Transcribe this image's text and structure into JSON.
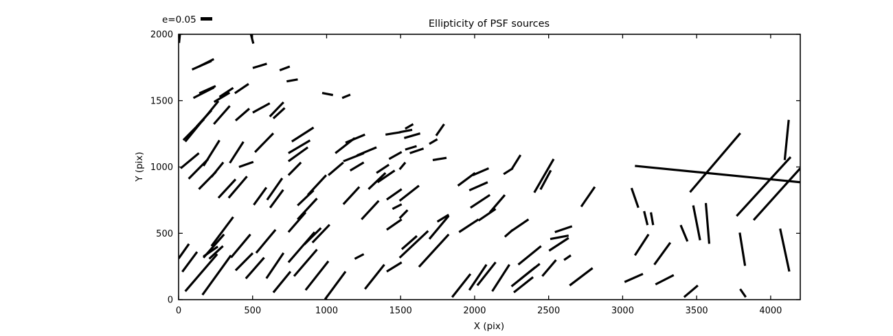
{
  "title": "Ellipticity of PSF sources",
  "legend": {
    "label": "e=0.05",
    "reference_e": 0.05,
    "sample_icon": "thick-horizontal-stick"
  },
  "axes": {
    "xlabel": "X (pix)",
    "ylabel": "Y (pix)",
    "xticks": [
      0,
      500,
      1000,
      1500,
      2000,
      2500,
      3000,
      3500,
      4000
    ],
    "yticks": [
      0,
      500,
      1000,
      1500,
      2000
    ],
    "xlim": [
      0,
      4200
    ],
    "ylim": [
      0,
      2000
    ],
    "grid": false,
    "tick_direction": "in",
    "frame": "box"
  },
  "colors": {
    "stroke": "#000000",
    "background": "#ffffff"
  },
  "chart_data": {
    "type": "scatter",
    "marker": "line-segment (ellipticity whisker: position = PSF source, angle/length = ellipticity)",
    "title": "Ellipticity of PSF sources",
    "xlabel": "X (pix)",
    "ylabel": "Y (pix)",
    "xlim": [
      0,
      4200
    ],
    "ylim": [
      0,
      2000
    ],
    "legend_position": "upper-left-outside",
    "segments": [
      [
        478,
        2045,
        505,
        1930
      ],
      [
        3,
        1935,
        12,
        2035
      ],
      [
        91,
        1734,
        222,
        1799
      ],
      [
        137,
        1757,
        238,
        1813
      ],
      [
        501,
        1746,
        596,
        1778
      ],
      [
        683,
        1729,
        751,
        1757
      ],
      [
        730,
        1645,
        805,
        1660
      ],
      [
        100,
        1520,
        240,
        1600
      ],
      [
        140,
        1555,
        250,
        1610
      ],
      [
        240,
        1490,
        345,
        1560
      ],
      [
        276,
        1528,
        369,
        1596
      ],
      [
        380,
        1556,
        473,
        1626
      ],
      [
        45,
        1191,
        269,
        1497
      ],
      [
        32,
        1202,
        171,
        1359
      ],
      [
        122,
        1305,
        222,
        1427
      ],
      [
        238,
        1323,
        346,
        1460
      ],
      [
        385,
        1350,
        478,
        1440
      ],
      [
        501,
        1410,
        616,
        1480
      ],
      [
        616,
        1380,
        709,
        1488
      ],
      [
        640,
        1366,
        717,
        1445
      ],
      [
        516,
        1112,
        640,
        1254
      ],
      [
        168,
        1008,
        276,
        1201
      ],
      [
        14,
        990,
        137,
        1104
      ],
      [
        346,
        1030,
        438,
        1190
      ],
      [
        408,
        1000,
        505,
        1038
      ],
      [
        68,
        911,
        200,
        1060
      ],
      [
        137,
        833,
        253,
        964
      ],
      [
        222,
        925,
        302,
        1035
      ],
      [
        269,
        767,
        385,
        907
      ],
      [
        338,
        767,
        462,
        929
      ],
      [
        508,
        714,
        593,
        845
      ],
      [
        598,
        752,
        700,
        915
      ],
      [
        618,
        693,
        707,
        828
      ],
      [
        222,
        404,
        369,
        623
      ],
      [
        168,
        316,
        307,
        492
      ],
      [
        0,
        310,
        70,
        420
      ],
      [
        25,
        210,
        125,
        360
      ],
      [
        354,
        317,
        485,
        492
      ],
      [
        524,
        352,
        655,
        527
      ],
      [
        593,
        160,
        709,
        352
      ],
      [
        454,
        159,
        578,
        317
      ],
      [
        640,
        54,
        756,
        212
      ],
      [
        45,
        63,
        261,
        343
      ],
      [
        161,
        36,
        354,
        334
      ],
      [
        168,
        325,
        265,
        400
      ],
      [
        207,
        308,
        300,
        404
      ],
      [
        385,
        220,
        501,
        351
      ],
      [
        970,
        1558,
        1043,
        1542
      ],
      [
        1105,
        1520,
        1160,
        1545
      ],
      [
        765,
        1192,
        912,
        1297
      ],
      [
        742,
        1104,
        888,
        1200
      ],
      [
        742,
        1043,
        873,
        1148
      ],
      [
        1059,
        1104,
        1190,
        1218
      ],
      [
        1128,
        1183,
        1259,
        1244
      ],
      [
        1113,
        1043,
        1252,
        1104
      ],
      [
        1205,
        1087,
        1337,
        1148
      ],
      [
        1398,
        1244,
        1499,
        1262
      ],
      [
        1422,
        1060,
        1507,
        1113
      ],
      [
        742,
        938,
        827,
        1034
      ],
      [
        873,
        789,
        997,
        938
      ],
      [
        804,
        710,
        912,
        824
      ],
      [
        804,
        605,
        935,
        763
      ],
      [
        742,
        509,
        858,
        658
      ],
      [
        1012,
        938,
        1113,
        1034
      ],
      [
        1113,
        719,
        1221,
        850
      ],
      [
        1159,
        973,
        1251,
        1034
      ],
      [
        1236,
        605,
        1352,
        745
      ],
      [
        1283,
        833,
        1398,
        955
      ],
      [
        1337,
        955,
        1421,
        1017
      ],
      [
        1344,
        885,
        1460,
        973
      ],
      [
        1406,
        754,
        1507,
        833
      ],
      [
        1445,
        684,
        1507,
        719
      ],
      [
        1406,
        527,
        1507,
        605
      ],
      [
        742,
        281,
        919,
        509
      ],
      [
        780,
        177,
        935,
        378
      ],
      [
        858,
        72,
        1012,
        290
      ],
      [
        989,
        2,
        1128,
        212
      ],
      [
        1190,
        308,
        1251,
        343
      ],
      [
        1259,
        80,
        1390,
        264
      ],
      [
        1406,
        212,
        1507,
        281
      ],
      [
        904,
        430,
        1020,
        565
      ],
      [
        848,
        415,
        962,
        540
      ],
      [
        1531,
        1288,
        1585,
        1323
      ],
      [
        1493,
        1262,
        1578,
        1280
      ],
      [
        1524,
        1218,
        1632,
        1253
      ],
      [
        1740,
        1236,
        1794,
        1323
      ],
      [
        1694,
        1174,
        1748,
        1209
      ],
      [
        1562,
        1104,
        1655,
        1139
      ],
      [
        1717,
        1052,
        1810,
        1069
      ],
      [
        1531,
        1131,
        1608,
        1157
      ],
      [
        1493,
        982,
        1532,
        1034
      ],
      [
        1493,
        745,
        1624,
        859
      ],
      [
        1493,
        614,
        1547,
        675
      ],
      [
        1493,
        316,
        1686,
        518
      ],
      [
        1508,
        380,
        1610,
        480
      ],
      [
        1624,
        247,
        1825,
        492
      ],
      [
        1694,
        457,
        1825,
        632
      ],
      [
        1748,
        588,
        1825,
        640
      ],
      [
        1887,
        859,
        2003,
        955
      ],
      [
        1987,
        938,
        2095,
        990
      ],
      [
        1964,
        824,
        2088,
        885
      ],
      [
        1972,
        693,
        2103,
        789
      ],
      [
        2103,
        658,
        2204,
        789
      ],
      [
        2026,
        596,
        2142,
        684
      ],
      [
        1895,
        509,
        2026,
        605
      ],
      [
        2196,
        946,
        2258,
        990
      ],
      [
        2204,
        474,
        2258,
        527
      ],
      [
        1848,
        19,
        1972,
        194
      ],
      [
        1964,
        72,
        2080,
        264
      ],
      [
        2018,
        107,
        2142,
        282
      ],
      [
        2119,
        63,
        2235,
        264
      ],
      [
        2249,
        981,
        2310,
        1090
      ],
      [
        2403,
        807,
        2534,
        1060
      ],
      [
        2445,
        830,
        2515,
        975
      ],
      [
        2720,
        701,
        2812,
        850
      ],
      [
        2249,
        518,
        2364,
        605
      ],
      [
        2542,
        509,
        2658,
        553
      ],
      [
        2511,
        457,
        2635,
        483
      ],
      [
        2503,
        369,
        2635,
        465
      ],
      [
        2295,
        264,
        2449,
        404
      ],
      [
        2249,
        100,
        2410,
        245
      ],
      [
        2265,
        55,
        2395,
        170
      ],
      [
        2310,
        155,
        2440,
        270
      ],
      [
        2457,
        177,
        2550,
        299
      ],
      [
        2604,
        299,
        2650,
        334
      ],
      [
        2642,
        107,
        2797,
        238
      ],
      [
        3083,
        1008,
        4200,
        885
      ],
      [
        3455,
        810,
        3795,
        1255
      ],
      [
        3770,
        630,
        4135,
        1075
      ],
      [
        3885,
        600,
        4200,
        990
      ],
      [
        4095,
        1052,
        4122,
        1355
      ],
      [
        3060,
        841,
        3106,
        693
      ],
      [
        3145,
        667,
        3168,
        562
      ],
      [
        3191,
        658,
        3206,
        562
      ],
      [
        3392,
        562,
        3438,
        439
      ],
      [
        3477,
        710,
        3523,
        448
      ],
      [
        3562,
        728,
        3585,
        421
      ],
      [
        3083,
        334,
        3175,
        492
      ],
      [
        3214,
        264,
        3322,
        430
      ],
      [
        3013,
        133,
        3137,
        194
      ],
      [
        3222,
        115,
        3345,
        185
      ],
      [
        3415,
        19,
        3508,
        107
      ],
      [
        3791,
        505,
        3827,
        255
      ],
      [
        4064,
        535,
        4126,
        212
      ],
      [
        3794,
        80,
        3832,
        19
      ]
    ]
  }
}
